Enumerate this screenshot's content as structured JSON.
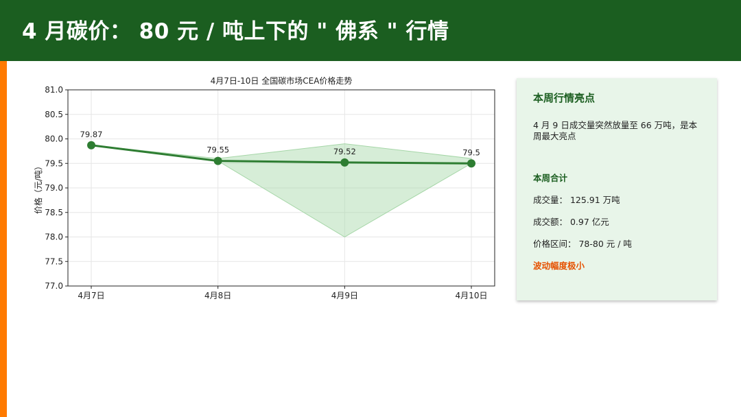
{
  "header": {
    "title": "4 月碳价： 80 元 / 吨上下的 \" 佛系 \" 行情"
  },
  "colors": {
    "header_bg": "#1b5e20",
    "accent": "#ff7a00",
    "line": "#2e7d32",
    "fill": "#a5d6a7",
    "panel_bg": "#e8f5e9",
    "warn": "#e65100"
  },
  "chart_data": {
    "type": "line",
    "title": "4月7日-10日 全国碳市场CEA价格走势",
    "xlabel": "",
    "ylabel": "价格（元/吨）",
    "categories": [
      "4月7日",
      "4月8日",
      "4月9日",
      "4月10日"
    ],
    "tick_labels": [
      "4月7日",
      "4月8日",
      "4月9日",
      "4月10日"
    ],
    "series": [
      {
        "values": [
          79.87,
          79.55,
          79.52,
          79.5
        ]
      }
    ],
    "range_band": {
      "low": [
        79.87,
        79.55,
        78.0,
        79.5
      ],
      "high": [
        79.87,
        79.6,
        79.9,
        79.6
      ]
    },
    "data_labels": [
      "79.87",
      "79.55",
      "79.52",
      "79.5"
    ],
    "ylim": [
      77.0,
      81.0
    ],
    "yticks": [
      77.0,
      77.5,
      78.0,
      78.5,
      79.0,
      79.5,
      80.0,
      80.5,
      81.0
    ],
    "ytick_labels": [
      "77.0",
      "77.5",
      "78.0",
      "78.5",
      "79.0",
      "79.5",
      "80.0",
      "80.5",
      "81.0"
    ],
    "grid": true,
    "legend": "none"
  },
  "panel": {
    "title": "本周行情亮点",
    "highlight": "4 月 9 日成交量突然放量至 66 万吨，是本周最大亮点",
    "summary_title": "本周合计",
    "volume": "成交量： 125.91 万吨",
    "amount": "成交额： 0.97 亿元",
    "price_range": "价格区间： 78-80 元 / 吨",
    "note": "波动幅度极小"
  }
}
